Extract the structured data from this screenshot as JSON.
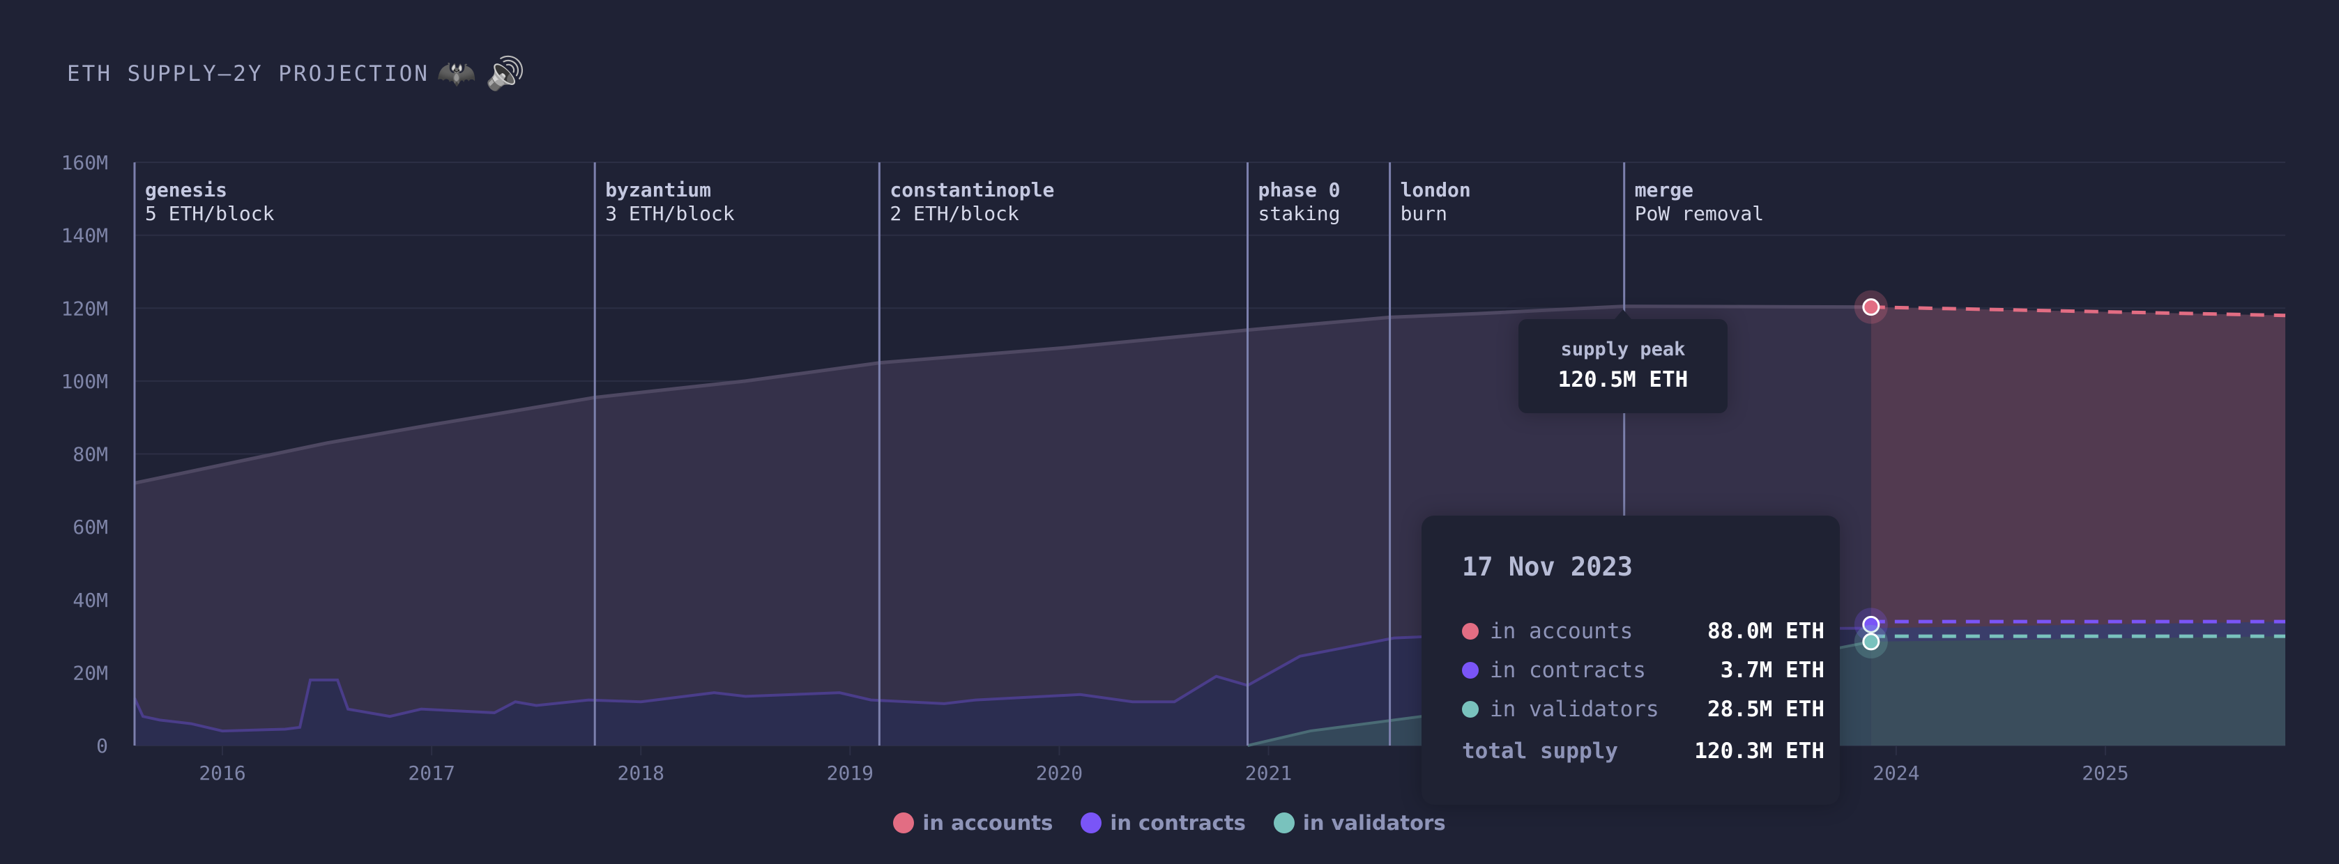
{
  "title": "ETH SUPPLY—2Y PROJECTION",
  "title_icons": [
    "bat-emoji-icon",
    "speaker-icon"
  ],
  "colors": {
    "accounts": "#e26d83",
    "contracts": "#7a55f7",
    "validators": "#79c2bd",
    "background": "#1f2235"
  },
  "chart_data": {
    "type": "area",
    "stacked": true,
    "ylim": [
      0,
      160
    ],
    "yticks": [
      "0",
      "20M",
      "40M",
      "60M",
      "80M",
      "100M",
      "120M",
      "140M",
      "160M"
    ],
    "ytick_values": [
      0,
      20,
      40,
      60,
      80,
      100,
      120,
      140,
      160
    ],
    "xlim": [
      2015.58,
      2025.86
    ],
    "xticks": [
      "2016",
      "2017",
      "2018",
      "2019",
      "2020",
      "2021",
      "2022",
      "2023",
      "2024",
      "2025"
    ],
    "grid": true,
    "legend_position": "bottom",
    "projection_start": 2023.88,
    "series": [
      {
        "name": "in validators",
        "x": [
          2020.9,
          2021.2,
          2021.6,
          2022.0,
          2022.7,
          2023.3,
          2023.88
        ],
        "y": [
          0,
          4,
          7,
          10,
          14,
          22,
          28.5
        ]
      },
      {
        "name": "in contracts",
        "x": [
          2015.58,
          2015.62,
          2015.7,
          2015.85,
          2016.0,
          2016.3,
          2016.37,
          2016.42,
          2016.55,
          2016.6,
          2016.8,
          2016.95,
          2017.3,
          2017.4,
          2017.5,
          2017.75,
          2018.0,
          2018.35,
          2018.5,
          2018.95,
          2019.1,
          2019.45,
          2019.6,
          2020.1,
          2020.35,
          2020.55,
          2020.75,
          2020.9,
          2021.15,
          2021.6,
          2022.2,
          2022.7,
          2023.3,
          2023.88
        ],
        "y": [
          13,
          8,
          7,
          6,
          4,
          4.5,
          5,
          18,
          18,
          10,
          8,
          10,
          9,
          12,
          11,
          12.5,
          12,
          14.5,
          13.5,
          14.5,
          12.5,
          11.5,
          12.5,
          14,
          12,
          12,
          19,
          16.5,
          24.5,
          29.5,
          31,
          31.5,
          32,
          32.2
        ]
      },
      {
        "name": "total supply",
        "x": [
          2015.58,
          2016.5,
          2017.0,
          2017.78,
          2018.5,
          2019.14,
          2020.0,
          2020.9,
          2021.58,
          2022.0,
          2022.7,
          2023.3,
          2023.88
        ],
        "y": [
          72,
          83,
          88,
          95.5,
          100,
          105,
          109,
          114,
          117.5,
          118.5,
          120.5,
          120.4,
          120.3
        ]
      }
    ],
    "projection": {
      "x": [
        2023.88,
        2025.86
      ],
      "validators": [
        28.5,
        30
      ],
      "contracts_top": [
        32.2,
        34
      ],
      "total": [
        120.3,
        118
      ]
    },
    "milestones": [
      {
        "name": "genesis",
        "note": "5 ETH/block",
        "x": 2015.58
      },
      {
        "name": "byzantium",
        "note": "3 ETH/block",
        "x": 2017.78
      },
      {
        "name": "constantinople",
        "note": "2 ETH/block",
        "x": 2019.14
      },
      {
        "name": "phase 0",
        "note": "staking",
        "x": 2020.9
      },
      {
        "name": "london",
        "note": "burn",
        "x": 2021.58
      },
      {
        "name": "merge",
        "note": "PoW removal",
        "x": 2022.7
      }
    ],
    "annotation": {
      "label": "supply peak",
      "value": "120.5M ETH",
      "x": 2022.7,
      "y": 120.5
    }
  },
  "tooltip": {
    "date": "17 Nov 2023",
    "rows": [
      {
        "label": "in accounts",
        "value": "88.0M ETH",
        "color": "#e26d83"
      },
      {
        "label": "in contracts",
        "value": "3.7M ETH",
        "color": "#7a55f7"
      },
      {
        "label": "in validators",
        "value": "28.5M ETH",
        "color": "#79c2bd"
      }
    ],
    "total_label": "total supply",
    "total_value": "120.3M ETH"
  },
  "legend": [
    {
      "label": "in accounts",
      "color": "#e26d83"
    },
    {
      "label": "in contracts",
      "color": "#7a55f7"
    },
    {
      "label": "in validators",
      "color": "#79c2bd"
    }
  ]
}
